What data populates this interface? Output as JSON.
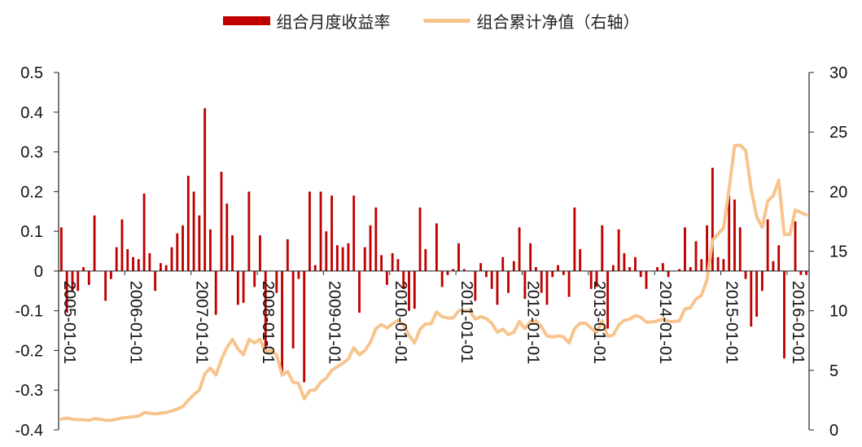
{
  "legend": {
    "bar_label": "组合月度收益率",
    "line_label": "组合累计净值（右轴）"
  },
  "colors": {
    "bar": "#c00000",
    "line": "#f8c48e",
    "axis": "#222222"
  },
  "chart_data": {
    "type": "bar+line",
    "title": "",
    "y_left": {
      "min": -0.4,
      "max": 0.5,
      "ticks": [
        "0.5",
        "0.4",
        "0.3",
        "0.2",
        "0.1",
        "0",
        "-0.1",
        "-0.2",
        "-0.3",
        "-0.4"
      ]
    },
    "y_right": {
      "min": 0,
      "max": 30,
      "ticks": [
        "30",
        "25",
        "20",
        "15",
        "10",
        "5",
        "0"
      ]
    },
    "x_start": "2005-01",
    "x_tick_labels": [
      "2005-01-01",
      "2006-01-01",
      "2007-01-01",
      "2008-01-01",
      "2009-01-01",
      "2010-01-01",
      "2011-01-01",
      "2012-01-01",
      "2013-01-01",
      "2014-01-01",
      "2015-01-01",
      "2016-01-01"
    ],
    "series": [
      {
        "name": "组合月度收益率",
        "kind": "bar",
        "axis": "left",
        "values": [
          0.11,
          -0.105,
          -0.05,
          -0.05,
          0.01,
          -0.035,
          0.14,
          0.0,
          -0.075,
          -0.02,
          0.06,
          0.13,
          0.055,
          0.035,
          0.03,
          0.195,
          0.045,
          -0.05,
          0.02,
          0.015,
          0.06,
          0.095,
          0.115,
          0.24,
          0.2,
          0.14,
          0.41,
          0.105,
          -0.11,
          0.25,
          0.17,
          0.09,
          -0.085,
          -0.08,
          0.2,
          -0.04,
          0.09,
          -0.2,
          0.0,
          -0.055,
          -0.265,
          0.08,
          -0.195,
          -0.02,
          -0.28,
          0.2,
          0.015,
          0.2,
          0.1,
          0.19,
          0.065,
          0.06,
          0.07,
          0.19,
          -0.105,
          0.06,
          0.115,
          0.16,
          0.04,
          -0.035,
          0.045,
          0.03,
          -0.045,
          -0.1,
          -0.095,
          0.16,
          0.055,
          0.0,
          0.12,
          -0.04,
          -0.01,
          0.005,
          0.07,
          0.005,
          0.0,
          -0.075,
          0.02,
          -0.015,
          -0.045,
          -0.085,
          0.035,
          -0.055,
          0.025,
          0.11,
          -0.07,
          0.07,
          0.01,
          -0.055,
          -0.085,
          -0.015,
          0.015,
          -0.01,
          -0.065,
          0.16,
          0.055,
          0.0,
          -0.045,
          -0.04,
          0.115,
          -0.145,
          0.015,
          0.105,
          0.045,
          0.01,
          0.035,
          -0.015,
          -0.045,
          0.0,
          0.01,
          0.02,
          -0.015,
          0.0,
          0.005,
          0.11,
          0.01,
          0.075,
          0.03,
          0.115,
          0.26,
          0.035,
          0.03,
          0.19,
          0.18,
          0.11,
          -0.02,
          -0.14,
          -0.115,
          -0.05,
          0.13,
          0.025,
          0.065,
          -0.22,
          0.0,
          0.125,
          -0.01,
          -0.01
        ]
      },
      {
        "name": "组合累计净值（右轴）",
        "kind": "line",
        "axis": "right",
        "values": [
          0.9,
          1.0,
          0.9,
          0.85,
          0.85,
          0.8,
          0.95,
          0.9,
          0.8,
          0.8,
          0.9,
          1.0,
          1.05,
          1.1,
          1.15,
          1.45,
          1.4,
          1.35,
          1.4,
          1.45,
          1.6,
          1.75,
          1.95,
          2.5,
          2.95,
          3.35,
          4.7,
          5.2,
          4.6,
          5.9,
          6.9,
          7.6,
          6.8,
          6.3,
          7.6,
          7.3,
          7.6,
          6.5,
          6.7,
          6.3,
          4.6,
          4.9,
          4.0,
          3.9,
          2.6,
          3.3,
          3.35,
          4.0,
          4.35,
          5.0,
          5.3,
          5.6,
          5.95,
          6.9,
          6.3,
          6.65,
          7.35,
          8.5,
          8.85,
          8.55,
          8.9,
          9.2,
          8.8,
          7.95,
          7.3,
          8.45,
          8.9,
          8.9,
          9.9,
          9.5,
          9.4,
          9.4,
          10.0,
          10.0,
          10.0,
          9.3,
          9.5,
          9.35,
          8.95,
          8.2,
          8.45,
          8.0,
          8.2,
          9.1,
          8.5,
          9.1,
          9.15,
          8.65,
          7.9,
          7.8,
          7.9,
          7.8,
          7.3,
          8.5,
          8.95,
          8.95,
          8.55,
          8.2,
          9.15,
          7.85,
          7.95,
          8.8,
          9.2,
          9.3,
          9.6,
          9.45,
          9.05,
          9.05,
          9.15,
          9.3,
          9.1,
          9.1,
          9.15,
          10.15,
          10.25,
          11.0,
          11.3,
          12.6,
          15.9,
          16.45,
          16.95,
          20.2,
          23.85,
          23.9,
          23.45,
          20.2,
          17.9,
          17.0,
          19.2,
          19.65,
          20.95,
          16.4,
          16.4,
          18.45,
          18.25,
          18.05
        ]
      }
    ]
  }
}
